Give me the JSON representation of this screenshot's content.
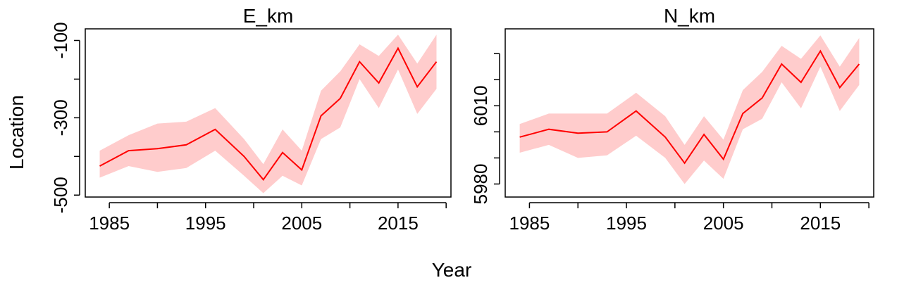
{
  "figure": {
    "xlabel": "Year",
    "ylabel": "Location"
  },
  "colors": {
    "line": "#ff0000",
    "band": "#ffcccc",
    "axis": "#000000"
  },
  "chart_data": [
    {
      "type": "line",
      "title": "E_km",
      "xlabel": "Year",
      "ylabel": "Location",
      "xlim": [
        1982.5,
        2020.5
      ],
      "ylim": [
        -505,
        -70
      ],
      "xticks": [
        1985,
        1995,
        2005,
        2015
      ],
      "xtick_minor": [
        1985,
        1990,
        1995,
        2000,
        2005,
        2010,
        2015,
        2020
      ],
      "yticks": [
        -100,
        -300,
        -500
      ],
      "ytick_minor": [
        -100,
        -200,
        -300,
        -400,
        -500
      ],
      "grid": false,
      "series": [
        {
          "x": [
            1984,
            1987,
            1990,
            1993,
            1996,
            1999,
            2001,
            2003,
            2005,
            2007,
            2009,
            2011,
            2013,
            2015,
            2017,
            2019
          ],
          "y": [
            -425,
            -385,
            -380,
            -370,
            -330,
            -400,
            -460,
            -390,
            -435,
            -295,
            -250,
            -155,
            -210,
            -120,
            -220,
            -155
          ],
          "lower": [
            -455,
            -425,
            -440,
            -430,
            -385,
            -450,
            -495,
            -450,
            -475,
            -355,
            -325,
            -200,
            -275,
            -175,
            -290,
            -225
          ],
          "upper": [
            -385,
            -345,
            -315,
            -310,
            -275,
            -355,
            -420,
            -330,
            -385,
            -230,
            -180,
            -110,
            -140,
            -85,
            -160,
            -85
          ]
        }
      ]
    },
    {
      "type": "line",
      "title": "N_km",
      "xlabel": "Year",
      "ylabel": "Location",
      "xlim": [
        1982.5,
        2020.5
      ],
      "ylim": [
        5975,
        6039.5
      ],
      "xticks": [
        1985,
        1995,
        2005,
        2015
      ],
      "xtick_minor": [
        1985,
        1990,
        1995,
        2000,
        2005,
        2010,
        2015,
        2020
      ],
      "yticks": [
        5980,
        6010
      ],
      "ytick_minor": [
        5980,
        5990,
        6000,
        6010,
        6020,
        6030
      ],
      "grid": false,
      "series": [
        {
          "x": [
            1984,
            1987,
            1990,
            1993,
            1996,
            1999,
            2001,
            2003,
            2005,
            2007,
            2009,
            2011,
            2013,
            2015,
            2017,
            2019
          ],
          "y": [
            5998,
            6001,
            5999.5,
            6000,
            6008,
            5998,
            5988,
            5999,
            5989.5,
            6007,
            6013,
            6026,
            6019,
            6031,
            6017,
            6026
          ],
          "lower": [
            5992,
            5995,
            5990,
            5991,
            5998.5,
            5990,
            5980,
            5989,
            5982,
            6001,
            6005,
            6019,
            6009,
            6025,
            6008,
            6018
          ],
          "upper": [
            6003,
            6007,
            6007,
            6007,
            6015,
            6006,
            5995,
            6006,
            5997,
            6016,
            6023,
            6033,
            6028,
            6037,
            6025,
            6036
          ]
        }
      ]
    }
  ]
}
